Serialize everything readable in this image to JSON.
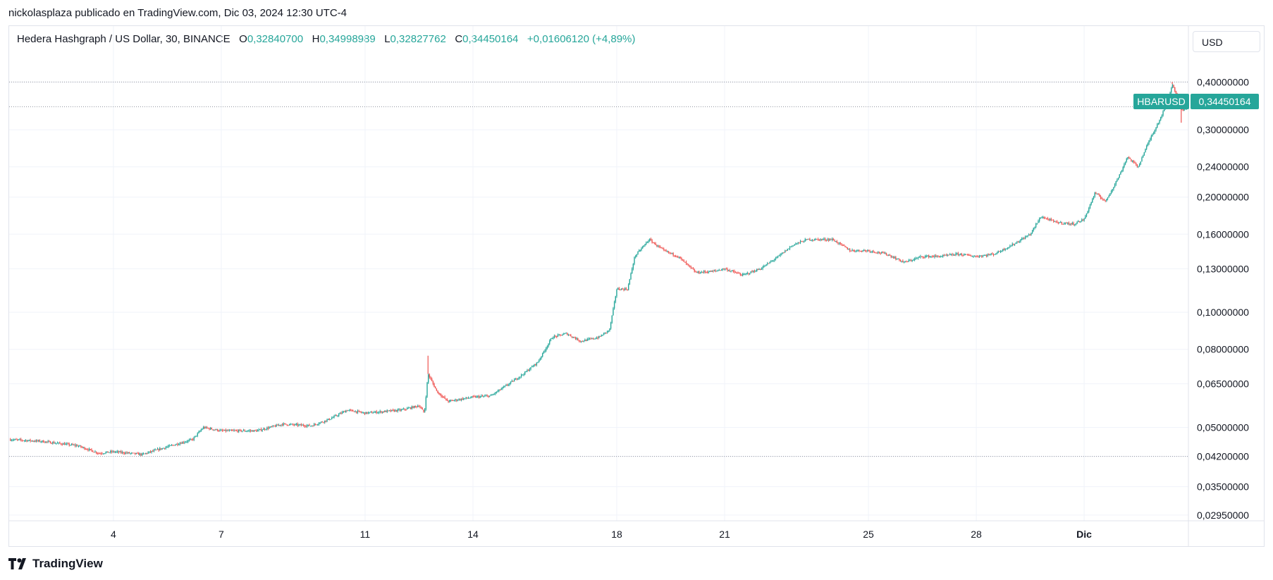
{
  "header": {
    "published_text": "nickolasplaza publicado en TradingView.com, Dic 03, 2024 12:30 UTC-4"
  },
  "legend": {
    "symbol": "Hedera Hashgraph / US Dollar, 30, BINANCE",
    "open_label": "O",
    "open_value": "0,32840700",
    "high_label": "H",
    "high_value": "0,34998989",
    "low_label": "L",
    "low_value": "0,32827762",
    "close_label": "C",
    "close_value": "0,34450164",
    "change": "+0,01606120 (+4,89%)"
  },
  "currency_button": "USD",
  "price_tag": {
    "symbol": "HBARUSD",
    "value": "0,34450164"
  },
  "footer": {
    "brand": "TradingView"
  },
  "colors": {
    "up": "#26a69a",
    "down": "#ef5350",
    "grid": "#f0f3fa",
    "border": "#e0e3eb",
    "text": "#131722"
  },
  "chart_data": {
    "type": "candlestick",
    "symbol": "HBARUSD",
    "interval": "30",
    "scale": "log",
    "grid": true,
    "yaxis_ticks": [
      "0,40000000",
      "0,30000000",
      "0,24000000",
      "0,20000000",
      "0,16000000",
      "0,13000000",
      "0,10000000",
      "0,08000000",
      "0,06500000",
      "0,05000000",
      "0,04200000",
      "0,03500000",
      "0,02950000"
    ],
    "yaxis_tick_values": [
      0.4,
      0.3,
      0.24,
      0.2,
      0.16,
      0.13,
      0.1,
      0.08,
      0.065,
      0.05,
      0.042,
      0.035,
      0.0295
    ],
    "xaxis_ticks": [
      "4",
      "7",
      "11",
      "14",
      "18",
      "21",
      "25",
      "28",
      "Dic"
    ],
    "xaxis_tick_days": [
      4,
      7,
      11,
      14,
      18,
      21,
      25,
      28,
      31
    ],
    "xlim_days": [
      1.1,
      33.9
    ],
    "ylim": [
      0.0285,
      0.56
    ],
    "reference_lines": [
      0.4,
      0.34450164,
      0.042
    ],
    "last_price": 0.34450164,
    "price_path": [
      [
        1.1,
        0.0465
      ],
      [
        2.0,
        0.046
      ],
      [
        3.0,
        0.0448
      ],
      [
        3.6,
        0.0428
      ],
      [
        4.0,
        0.0432
      ],
      [
        4.8,
        0.0425
      ],
      [
        5.5,
        0.0445
      ],
      [
        6.2,
        0.0465
      ],
      [
        6.5,
        0.05
      ],
      [
        7.0,
        0.049
      ],
      [
        8.0,
        0.049
      ],
      [
        8.7,
        0.051
      ],
      [
        9.5,
        0.0505
      ],
      [
        10.0,
        0.0525
      ],
      [
        10.5,
        0.0555
      ],
      [
        11.0,
        0.0545
      ],
      [
        12.0,
        0.0555
      ],
      [
        12.5,
        0.057
      ],
      [
        12.65,
        0.0545
      ],
      [
        12.75,
        0.069
      ],
      [
        13.0,
        0.062
      ],
      [
        13.3,
        0.0585
      ],
      [
        14.0,
        0.06
      ],
      [
        14.5,
        0.0605
      ],
      [
        15.0,
        0.065
      ],
      [
        15.4,
        0.069
      ],
      [
        15.8,
        0.074
      ],
      [
        16.2,
        0.086
      ],
      [
        16.6,
        0.088
      ],
      [
        17.0,
        0.084
      ],
      [
        17.5,
        0.086
      ],
      [
        17.8,
        0.09
      ],
      [
        18.0,
        0.115
      ],
      [
        18.3,
        0.115
      ],
      [
        18.5,
        0.14
      ],
      [
        18.9,
        0.155
      ],
      [
        19.3,
        0.145
      ],
      [
        19.7,
        0.14
      ],
      [
        20.2,
        0.127
      ],
      [
        20.7,
        0.128
      ],
      [
        21.0,
        0.13
      ],
      [
        21.5,
        0.125
      ],
      [
        22.0,
        0.13
      ],
      [
        22.5,
        0.14
      ],
      [
        22.9,
        0.15
      ],
      [
        23.3,
        0.155
      ],
      [
        24.0,
        0.155
      ],
      [
        24.5,
        0.145
      ],
      [
        25.0,
        0.145
      ],
      [
        25.5,
        0.142
      ],
      [
        26.0,
        0.135
      ],
      [
        26.5,
        0.14
      ],
      [
        27.0,
        0.14
      ],
      [
        27.5,
        0.142
      ],
      [
        28.0,
        0.14
      ],
      [
        28.5,
        0.142
      ],
      [
        29.0,
        0.15
      ],
      [
        29.5,
        0.16
      ],
      [
        29.8,
        0.178
      ],
      [
        30.2,
        0.172
      ],
      [
        30.7,
        0.17
      ],
      [
        31.0,
        0.175
      ],
      [
        31.3,
        0.205
      ],
      [
        31.6,
        0.195
      ],
      [
        32.0,
        0.23
      ],
      [
        32.2,
        0.255
      ],
      [
        32.5,
        0.24
      ],
      [
        32.8,
        0.28
      ],
      [
        33.0,
        0.305
      ],
      [
        33.3,
        0.35
      ],
      [
        33.45,
        0.395
      ],
      [
        33.6,
        0.365
      ],
      [
        33.75,
        0.335
      ],
      [
        33.85,
        0.3445
      ]
    ],
    "spikes": [
      {
        "day": 12.75,
        "high": 0.077
      },
      {
        "day": 33.45,
        "high": 0.4
      },
      {
        "day": 33.7,
        "low": 0.313
      }
    ]
  }
}
